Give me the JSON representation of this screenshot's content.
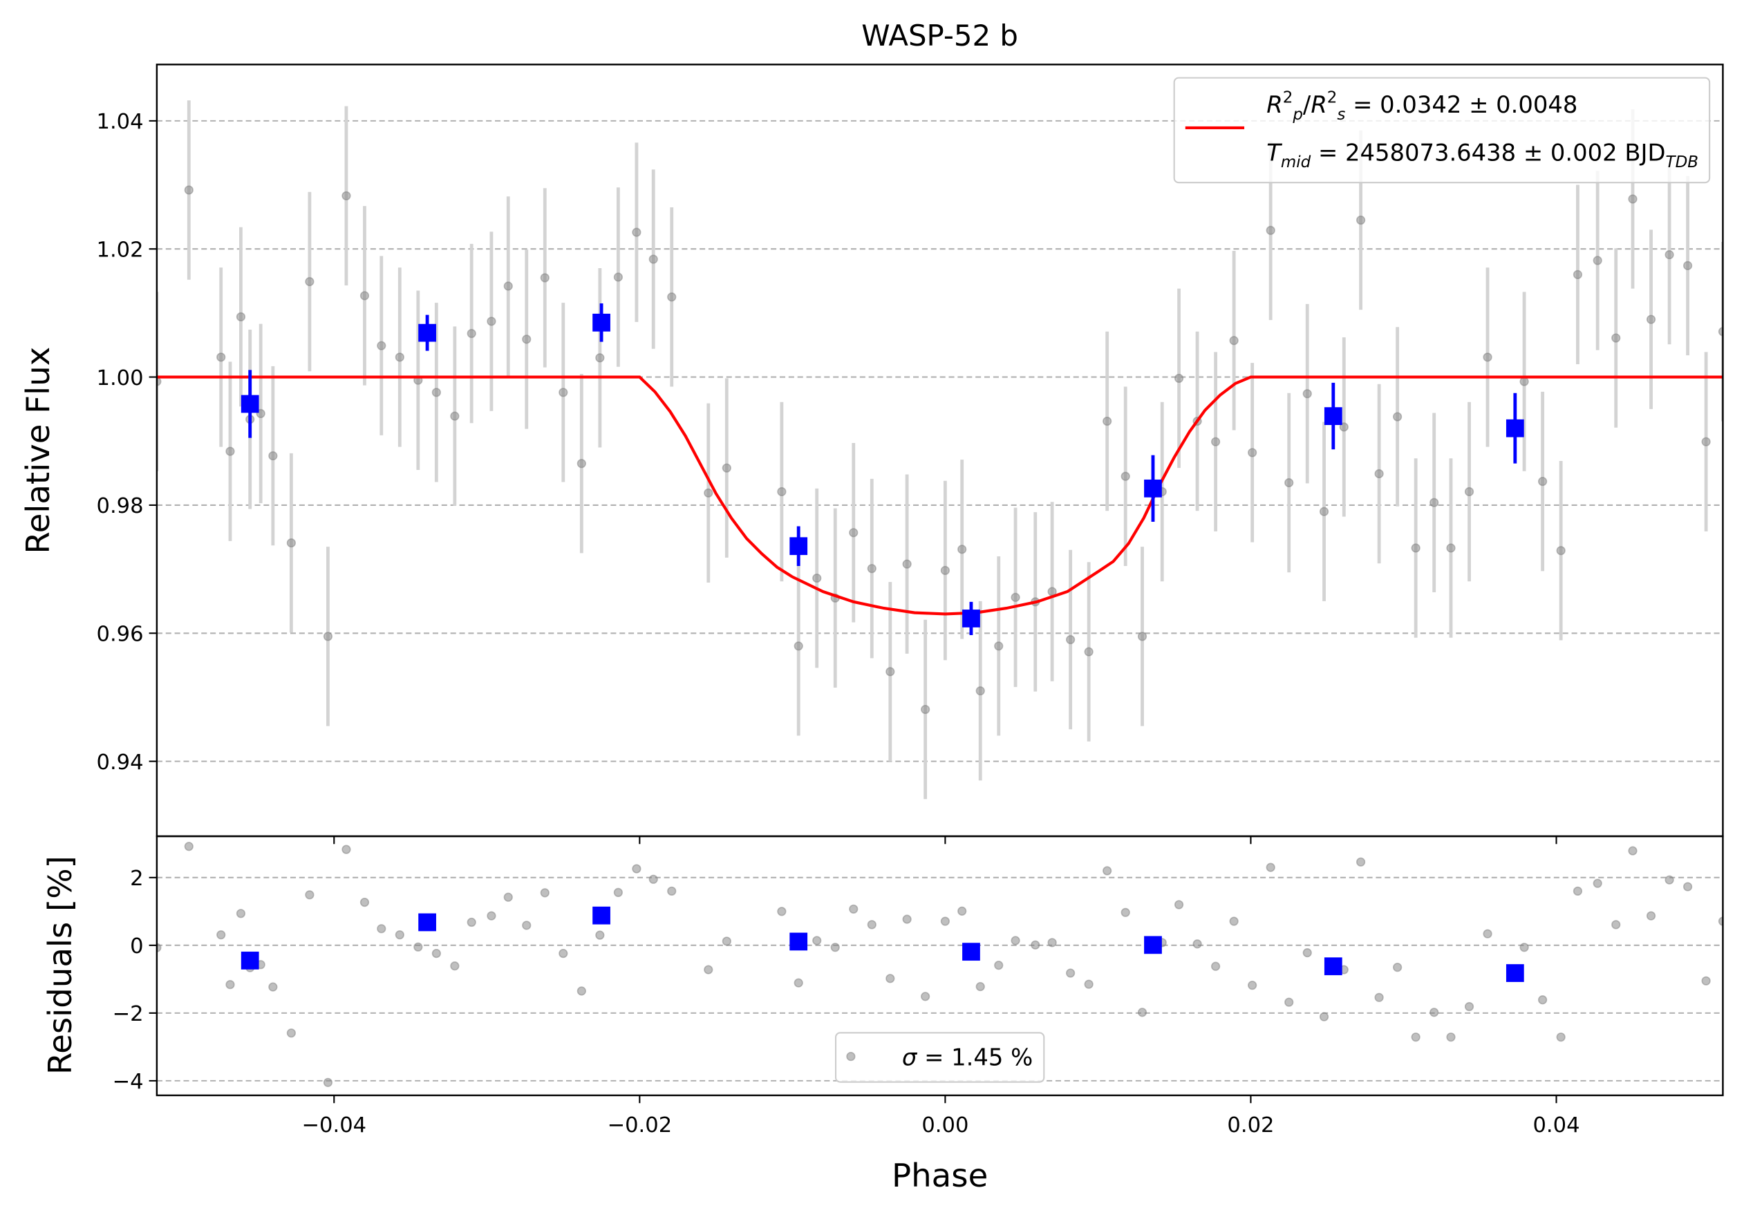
{
  "chart_data": [
    {
      "type": "errorbar",
      "title": "WASP-52 b",
      "ylabel": "Relative Flux",
      "xlim": [
        -0.0516,
        0.0509
      ],
      "ylim": [
        0.9283,
        1.0488
      ],
      "yticks": [
        0.94,
        0.96,
        0.98,
        {
          "value": 1.0,
          "label": "1.00"
        },
        1.02,
        1.04
      ],
      "grid": "y",
      "legend": "upper right",
      "series": [
        {
          "kind": "points",
          "color": "gray",
          "ecolor": "lightgray",
          "error": 0.014,
          "x": [
            -0.0516,
            -0.0495,
            -0.0474,
            -0.0468,
            -0.0461,
            -0.0455,
            -0.0448,
            -0.044,
            -0.0428,
            -0.0416,
            -0.0404,
            -0.0392,
            -0.038,
            -0.0369,
            -0.0357,
            -0.0345,
            -0.0333,
            -0.0321,
            -0.031,
            -0.0297,
            -0.0286,
            -0.0274,
            -0.0262,
            -0.025,
            -0.0238,
            -0.0226,
            -0.0214,
            -0.0202,
            -0.0191,
            -0.0179,
            -0.0155,
            -0.0143,
            -0.0107,
            -0.0096,
            -0.0084,
            -0.0072,
            -0.006,
            -0.0048,
            -0.0036,
            -0.0025,
            -0.0013,
            0.0,
            0.0011,
            0.0023,
            0.0035,
            0.0046,
            0.0059,
            0.007,
            0.0082,
            0.0094,
            0.0106,
            0.0118,
            0.0129,
            0.0142,
            0.0153,
            0.0165,
            0.0177,
            0.0189,
            0.0201,
            0.0213,
            0.0225,
            0.0237,
            0.0248,
            0.0261,
            0.0272,
            0.0284,
            0.0296,
            0.0308,
            0.032,
            0.0331,
            0.0343,
            0.0355,
            0.0379,
            0.0391,
            0.0403,
            0.0414,
            0.0427,
            0.0439,
            0.045,
            0.0462,
            0.0474,
            0.0486,
            0.0498,
            0.0509
          ],
          "values": [
            0.9993,
            1.0292,
            1.0031,
            0.9884,
            1.0094,
            0.9934,
            0.9943,
            0.9877,
            0.9741,
            1.0149,
            0.9595,
            1.0283,
            1.0127,
            1.0049,
            1.0031,
            0.9995,
            0.9976,
            0.9939,
            1.0068,
            1.0087,
            1.0142,
            1.0059,
            1.0155,
            0.9976,
            0.9865,
            1.003,
            1.0156,
            1.0226,
            1.0184,
            1.0125,
            0.9819,
            0.9858,
            0.9821,
            0.958,
            0.9686,
            0.9655,
            0.9757,
            0.9701,
            0.954,
            0.9708,
            0.9481,
            0.9698,
            0.9731,
            0.951,
            0.958,
            0.9656,
            0.9649,
            0.9665,
            0.959,
            0.9571,
            0.9931,
            0.9845,
            0.9595,
            0.9821,
            0.9998,
            0.9931,
            0.9899,
            1.0057,
            0.9882,
            1.0229,
            0.9835,
            0.9974,
            0.979,
            0.9922,
            1.0245,
            0.9849,
            0.9938,
            0.9733,
            0.9804,
            0.9733,
            0.9821,
            1.0031,
            0.9993,
            0.9837,
            0.9729,
            1.016,
            1.0182,
            1.0061,
            1.0278,
            1.009,
            1.0191,
            1.0174,
            0.9899,
            1.0071
          ]
        },
        {
          "kind": "line",
          "color": "#ff0000",
          "name": [
            [
              {
                "text": "R",
                "italic": true
              },
              {
                "text": "2",
                "pos": "sup"
              },
              {
                "text": "p",
                "pos": "sub",
                "italic": true
              },
              {
                "text": "/"
              },
              {
                "text": "R",
                "italic": true
              },
              {
                "text": "2",
                "pos": "sup"
              },
              {
                "text": "s",
                "pos": "sub",
                "italic": true
              },
              {
                "text": " = 0.0342 ± 0.0048"
              }
            ],
            [
              {
                "text": "T",
                "italic": true
              },
              {
                "text": "mid",
                "pos": "sub",
                "italic": true
              },
              {
                "text": " = 2458073.6438 ± 0.002 BJD"
              },
              {
                "text": "TDB",
                "pos": "sub",
                "italic": true
              }
            ]
          ],
          "x": [
            -0.0516,
            -0.02,
            -0.019,
            -0.018,
            -0.017,
            -0.016,
            -0.015,
            -0.014,
            -0.013,
            -0.012,
            -0.011,
            -0.01,
            -0.008,
            -0.006,
            -0.004,
            -0.002,
            0.0,
            0.002,
            0.004,
            0.006,
            0.008,
            0.01,
            0.011,
            0.012,
            0.013,
            0.014,
            0.015,
            0.016,
            0.017,
            0.018,
            0.019,
            0.02,
            0.0509
          ],
          "values": [
            1.0,
            1.0,
            0.9977,
            0.9946,
            0.9908,
            0.9863,
            0.9818,
            0.978,
            0.9748,
            0.9724,
            0.9703,
            0.9688,
            0.9665,
            0.9649,
            0.9639,
            0.9632,
            0.963,
            0.9632,
            0.9639,
            0.9649,
            0.9665,
            0.9696,
            0.9712,
            0.974,
            0.978,
            0.983,
            0.9875,
            0.9915,
            0.9948,
            0.9972,
            0.999,
            1.0,
            1.0
          ]
        },
        {
          "kind": "squares",
          "color": "#0000ff",
          "ecolor": "#0000ff",
          "x": [
            -0.0455,
            -0.0339,
            -0.0225,
            -0.0096,
            0.0017,
            0.0136,
            0.0254,
            0.0373
          ],
          "values": [
            0.9958,
            1.0069,
            1.0085,
            0.9736,
            0.9623,
            0.9826,
            0.9939,
            0.992
          ],
          "errors": [
            0.0053,
            0.0028,
            0.003,
            0.0031,
            0.0026,
            0.0052,
            0.0052,
            0.0055
          ]
        }
      ]
    },
    {
      "type": "scatter",
      "ylabel": "Residuals [%]",
      "xlabel": "Phase",
      "xlim": [
        -0.0516,
        0.0509
      ],
      "ylim": [
        -4.43,
        3.22
      ],
      "xticks": [
        {
          "value": -0.04,
          "label": "−0.04"
        },
        {
          "value": -0.02,
          "label": "−0.02"
        },
        {
          "value": 0,
          "label": "0.00"
        },
        {
          "value": 0.02,
          "label": "0.02"
        },
        {
          "value": 0.04,
          "label": "0.04"
        }
      ],
      "yticks": [
        {
          "value": -4,
          "label": "−4"
        },
        {
          "value": -2,
          "label": "−2"
        },
        0,
        2
      ],
      "grid": "y",
      "legend": "lower center",
      "series": [
        {
          "kind": "points",
          "color": "gray",
          "name": [
            [
              {
                "text": "σ",
                "italic": true
              },
              {
                "text": " = 1.45 %"
              }
            ]
          ],
          "x": [
            -0.0516,
            -0.0495,
            -0.0474,
            -0.0468,
            -0.0461,
            -0.0455,
            -0.0448,
            -0.044,
            -0.0428,
            -0.0416,
            -0.0404,
            -0.0392,
            -0.038,
            -0.0369,
            -0.0357,
            -0.0345,
            -0.0333,
            -0.0321,
            -0.031,
            -0.0297,
            -0.0286,
            -0.0274,
            -0.0262,
            -0.025,
            -0.0238,
            -0.0226,
            -0.0214,
            -0.0202,
            -0.0191,
            -0.0179,
            -0.0155,
            -0.0143,
            -0.0107,
            -0.0096,
            -0.0084,
            -0.0072,
            -0.006,
            -0.0048,
            -0.0036,
            -0.0025,
            -0.0013,
            0.0,
            0.0011,
            0.0023,
            0.0035,
            0.0046,
            0.0059,
            0.007,
            0.0082,
            0.0094,
            0.0106,
            0.0118,
            0.0129,
            0.0142,
            0.0153,
            0.0165,
            0.0177,
            0.0189,
            0.0201,
            0.0213,
            0.0225,
            0.0237,
            0.0248,
            0.0261,
            0.0272,
            0.0284,
            0.0296,
            0.0308,
            0.032,
            0.0331,
            0.0343,
            0.0355,
            0.0379,
            0.0391,
            0.0403,
            0.0414,
            0.0427,
            0.0439,
            0.045,
            0.0462,
            0.0474,
            0.0486,
            0.0498,
            0.0509
          ],
          "values": [
            -0.07,
            2.92,
            0.31,
            -1.16,
            0.94,
            -0.66,
            -0.57,
            -1.23,
            -2.59,
            1.49,
            -4.05,
            2.83,
            1.27,
            0.49,
            0.31,
            -0.05,
            -0.24,
            -0.61,
            0.68,
            0.87,
            1.42,
            0.59,
            1.55,
            -0.24,
            -1.35,
            0.3,
            1.56,
            2.26,
            1.95,
            1.6,
            -0.72,
            0.12,
            1.0,
            -1.11,
            0.14,
            -0.06,
            1.07,
            0.61,
            -0.98,
            0.77,
            -1.51,
            0.71,
            1.01,
            -1.22,
            -0.59,
            0.14,
            0.01,
            0.08,
            -0.82,
            -1.15,
            2.2,
            0.97,
            -1.98,
            0.08,
            1.2,
            0.04,
            -0.62,
            0.71,
            -1.18,
            2.3,
            -1.68,
            -0.22,
            -2.11,
            -0.72,
            2.46,
            -1.54,
            -0.65,
            -2.71,
            -1.98,
            -2.71,
            -1.81,
            0.34,
            -0.06,
            -1.61,
            -2.71,
            1.6,
            1.83,
            0.61,
            2.79,
            0.87,
            1.93,
            1.73,
            -1.05,
            0.71
          ]
        },
        {
          "kind": "squares",
          "color": "#0000ff",
          "x": [
            -0.0455,
            -0.0339,
            -0.0225,
            -0.0096,
            0.0017,
            0.0136,
            0.0254,
            0.0373
          ],
          "values": [
            -0.45,
            0.68,
            0.88,
            0.11,
            -0.19,
            0.01,
            -0.62,
            -0.82
          ]
        }
      ]
    }
  ]
}
